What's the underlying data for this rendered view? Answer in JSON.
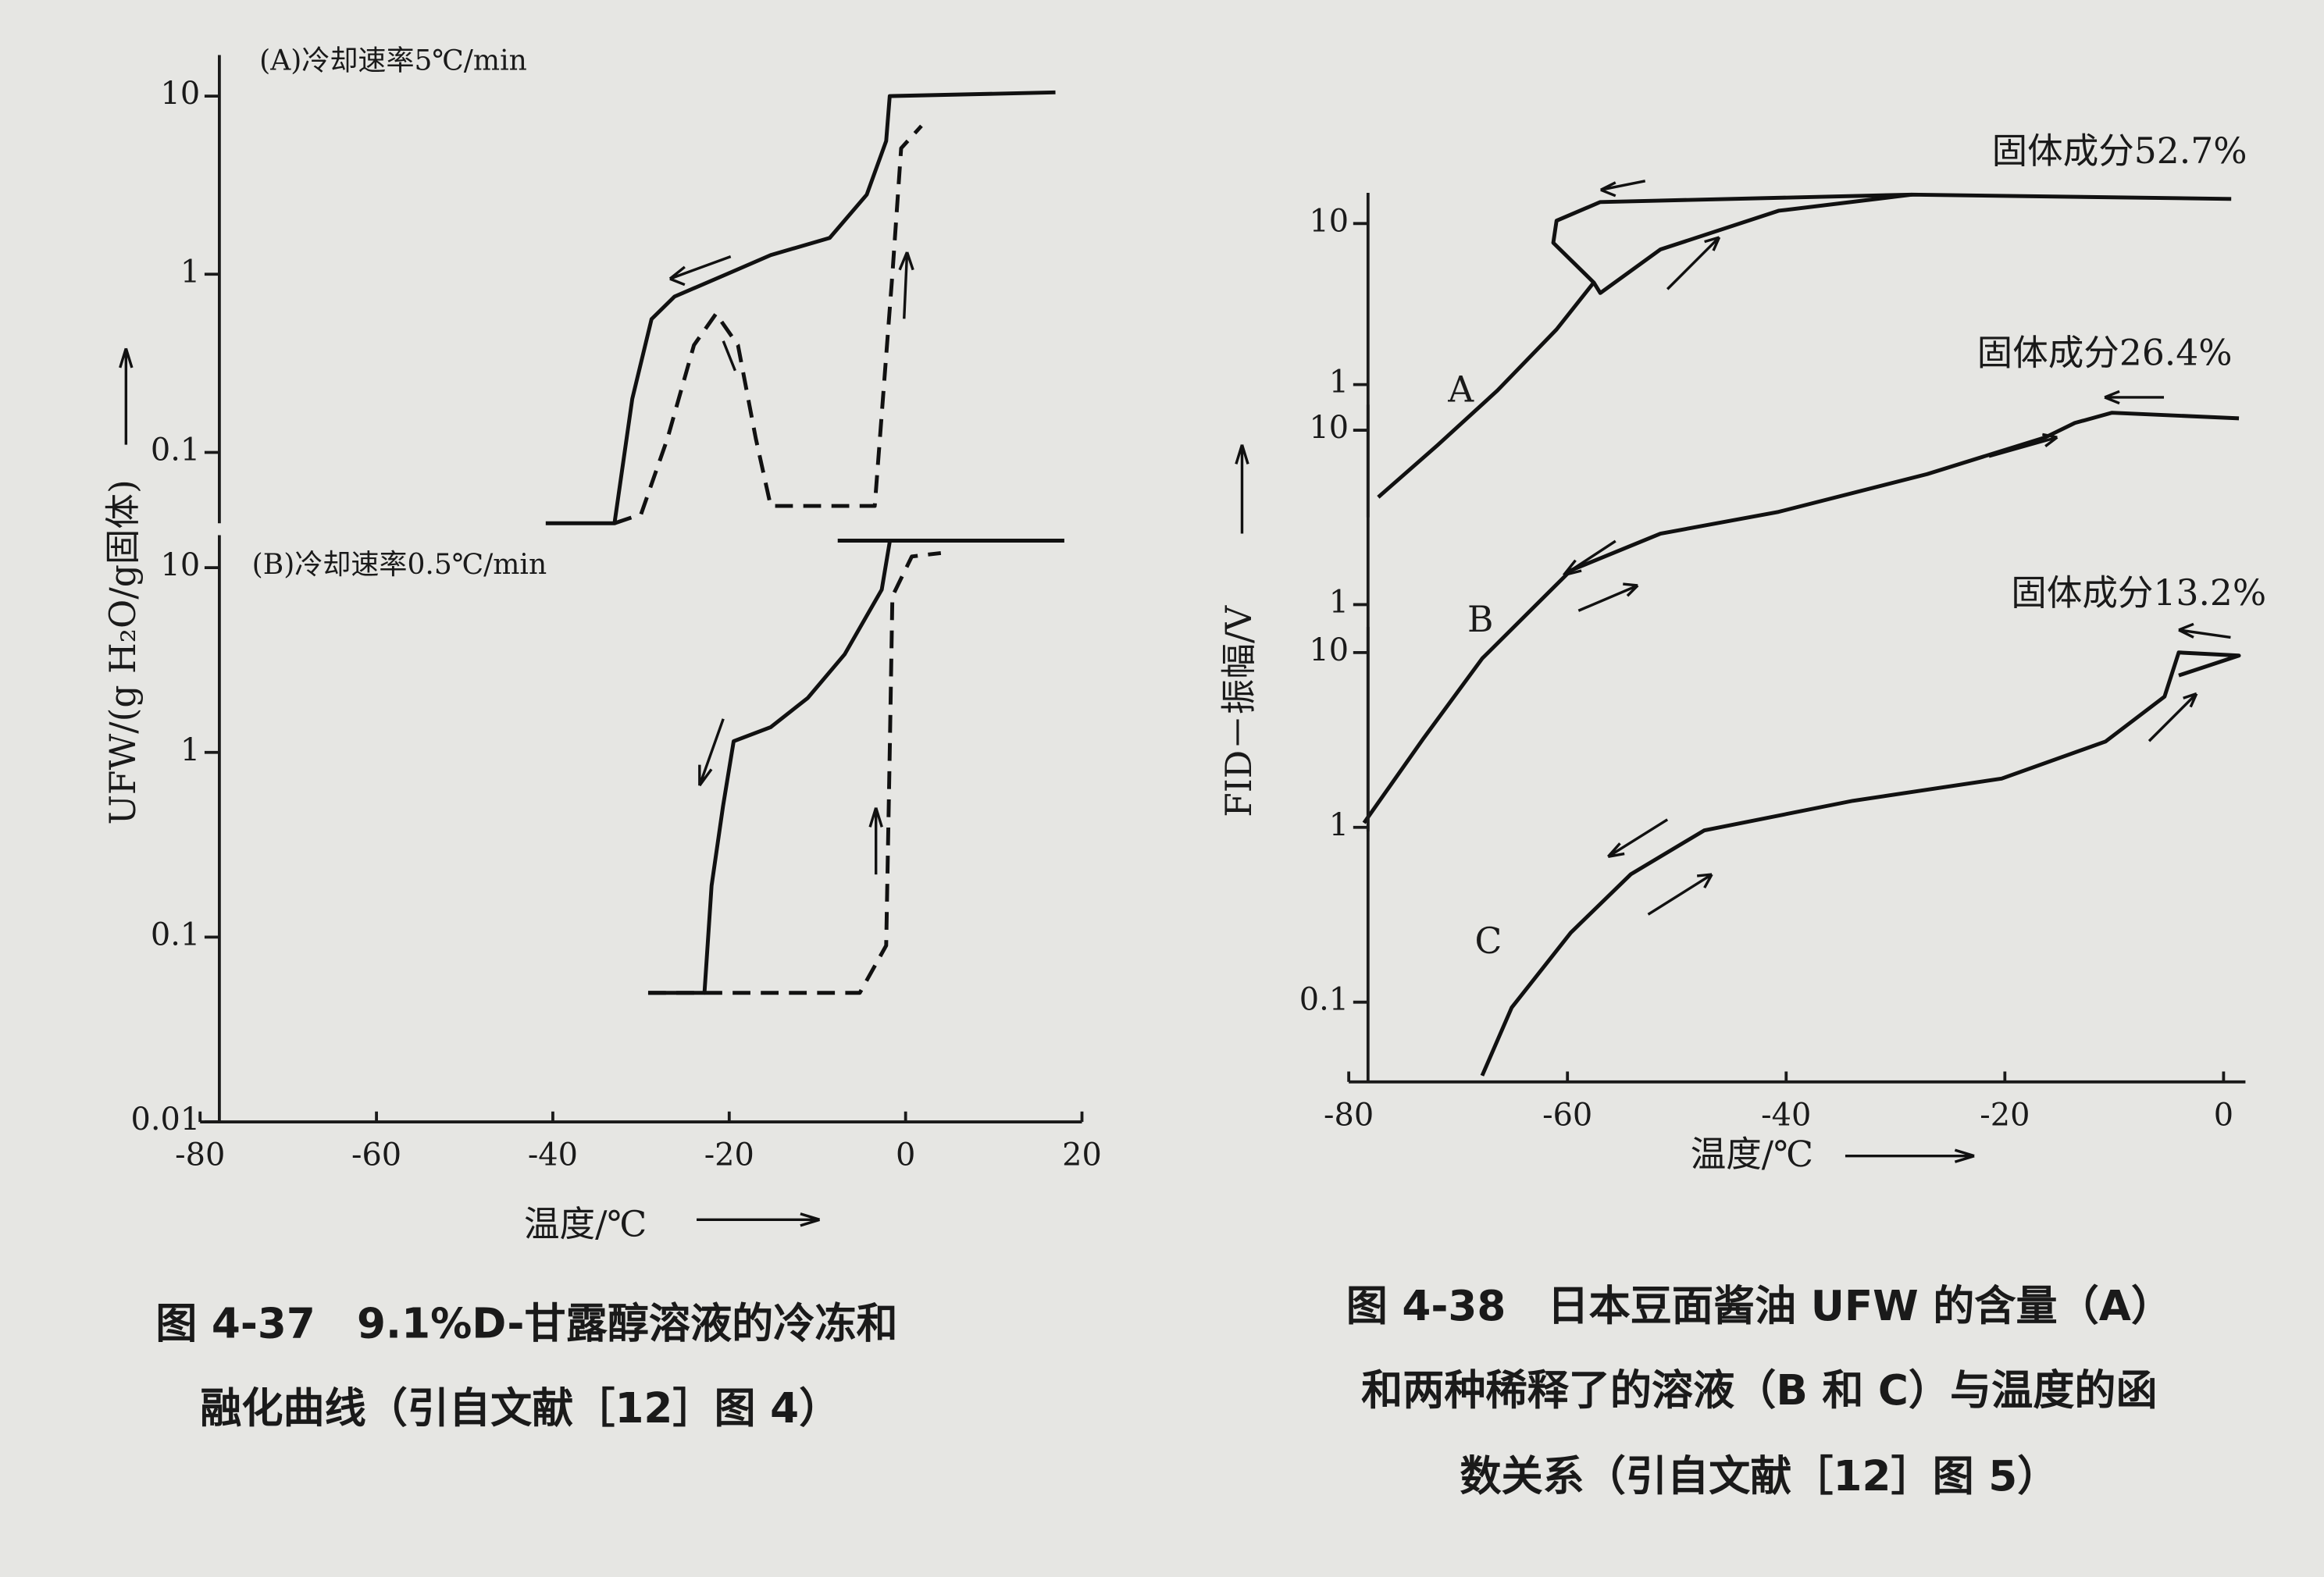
{
  "chart_data": [
    {
      "type": "line",
      "title": "(A)冷却速率5℃/min",
      "y_label": "UFW/(g H₂O/g固体)",
      "log_y": true,
      "xlim": [
        -80,
        20
      ],
      "ylim": [
        0.04,
        17
      ],
      "yticks": [
        10,
        1,
        0.1
      ],
      "series": [
        {
          "color": "#111111",
          "linestyle": "solid",
          "x": [
            -40.8,
            -33,
            -31,
            -28.8,
            -26.2,
            -20.3,
            -15.3,
            -8.6,
            -4.4,
            -2.2,
            -1.8,
            17
          ],
          "values": [
            0.04,
            0.04,
            0.2,
            0.56,
            0.75,
            1.0,
            1.28,
            1.6,
            2.8,
            5.6,
            10,
            10.5
          ]
        },
        {
          "color": "#111111",
          "linestyle": "dashed",
          "x": [
            -33,
            -30,
            -27,
            -24,
            -21.5,
            -19,
            -17,
            -15.3,
            -3.5,
            -1.5,
            -0.5,
            1.8
          ],
          "values": [
            0.04,
            0.045,
            0.12,
            0.4,
            0.6,
            0.4,
            0.12,
            0.05,
            0.05,
            1,
            5.1,
            6.8
          ]
        }
      ]
    },
    {
      "type": "line",
      "title": "(B)冷却速率0.5℃/min",
      "x_label": "温度/℃",
      "log_y": true,
      "xlim": [
        -80,
        20
      ],
      "xticks": [
        -80,
        -60,
        -40,
        -20,
        0,
        20
      ],
      "ylim": [
        0.01,
        15
      ],
      "yticks": [
        10,
        1,
        0.1,
        0.01
      ],
      "series": [
        {
          "color": "#111111",
          "linestyle": "solid",
          "x": [
            -29.2,
            -22.8,
            -22,
            -20.7,
            -19.5,
            -15.3,
            -11.1,
            -6.9,
            -2.7,
            -1.8
          ],
          "values": [
            0.05,
            0.05,
            0.19,
            0.51,
            1.15,
            1.37,
            1.97,
            3.4,
            7.6,
            13.8
          ]
        },
        {
          "color": "#111111",
          "linestyle": "solid",
          "x": [
            -7.7,
            18
          ],
          "values": [
            14,
            14
          ]
        },
        {
          "color": "#111111",
          "linestyle": "dashed",
          "x": [
            -29.2,
            -5.2,
            -2.2,
            -1.8,
            -1.5,
            0.7,
            4
          ],
          "values": [
            0.05,
            0.05,
            0.09,
            1,
            7,
            11.5,
            12
          ]
        }
      ]
    },
    {
      "type": "line",
      "y_label": "FID－振幅/V",
      "log_y": true,
      "annotations": [
        "A",
        "固体成分52.7%"
      ],
      "xlim": [
        -80,
        2
      ],
      "ylim": [
        0.15,
        15.5
      ],
      "yticks": [
        10,
        1
      ],
      "series": [
        {
          "color": "#111111",
          "linestyle": "solid",
          "x": [
            0.7,
            -28.5,
            -57,
            -61,
            -61.3,
            -57.6,
            -61,
            -66.4,
            -71.9,
            -77.3
          ],
          "values": [
            14.2,
            15.1,
            13.6,
            10.4,
            7.6,
            4.3,
            2.2,
            0.92,
            0.42,
            0.2
          ]
        },
        {
          "color": "#111111",
          "linestyle": "solid",
          "x": [
            -57.6,
            -57,
            -51.5,
            -40.7,
            -28.5
          ],
          "values": [
            4.3,
            3.7,
            6.9,
            12,
            15.1
          ]
        }
      ]
    },
    {
      "type": "line",
      "log_y": true,
      "annotations": [
        "B",
        "固体成分26.4%"
      ],
      "xlim": [
        -80,
        2
      ],
      "ylim": [
        0.05,
        14
      ],
      "yticks": [
        10,
        1
      ],
      "series": [
        {
          "color": "#111111",
          "linestyle": "solid",
          "x": [
            -78.6,
            -73.2,
            -67.8,
            -59.7,
            -51.5,
            -40.7,
            -27.1,
            -16.3,
            -13.6,
            -10.2,
            1.4
          ],
          "values": [
            0.056,
            0.17,
            0.49,
            1.57,
            2.55,
            3.4,
            5.6,
            9.1,
            11,
            12.6,
            11.7
          ]
        }
      ]
    },
    {
      "type": "line",
      "x_label": "温度/℃",
      "log_y": true,
      "annotations": [
        "C",
        "固体成分13.2%"
      ],
      "xlim": [
        -80,
        2
      ],
      "xticks": [
        -80,
        -60,
        -40,
        -20,
        0
      ],
      "ylim": [
        0.035,
        14
      ],
      "yticks": [
        10,
        1,
        0.1
      ],
      "series": [
        {
          "color": "#111111",
          "linestyle": "solid",
          "x": [
            -67.8,
            -65.1,
            -59.7,
            -54.2,
            -47.5,
            -33.9,
            -20.3,
            -10.8,
            -5.4,
            -4.1,
            1.4,
            -4.1
          ],
          "values": [
            0.038,
            0.093,
            0.25,
            0.54,
            0.96,
            1.42,
            1.9,
            3.1,
            5.6,
            10,
            9.6,
            7.4
          ]
        }
      ]
    }
  ],
  "captions": [
    [
      "图 4-37　9.1%D-甘露醇溶液的冷冻和",
      "融化曲线（引自文献［12］图 4）"
    ],
    [
      "图 4-38　日本豆面酱油 UFW 的含量（A）",
      "和两种稀释了的溶液（B 和 C）与温度的函",
      "数关系（引自文献［12］图 5）"
    ]
  ]
}
